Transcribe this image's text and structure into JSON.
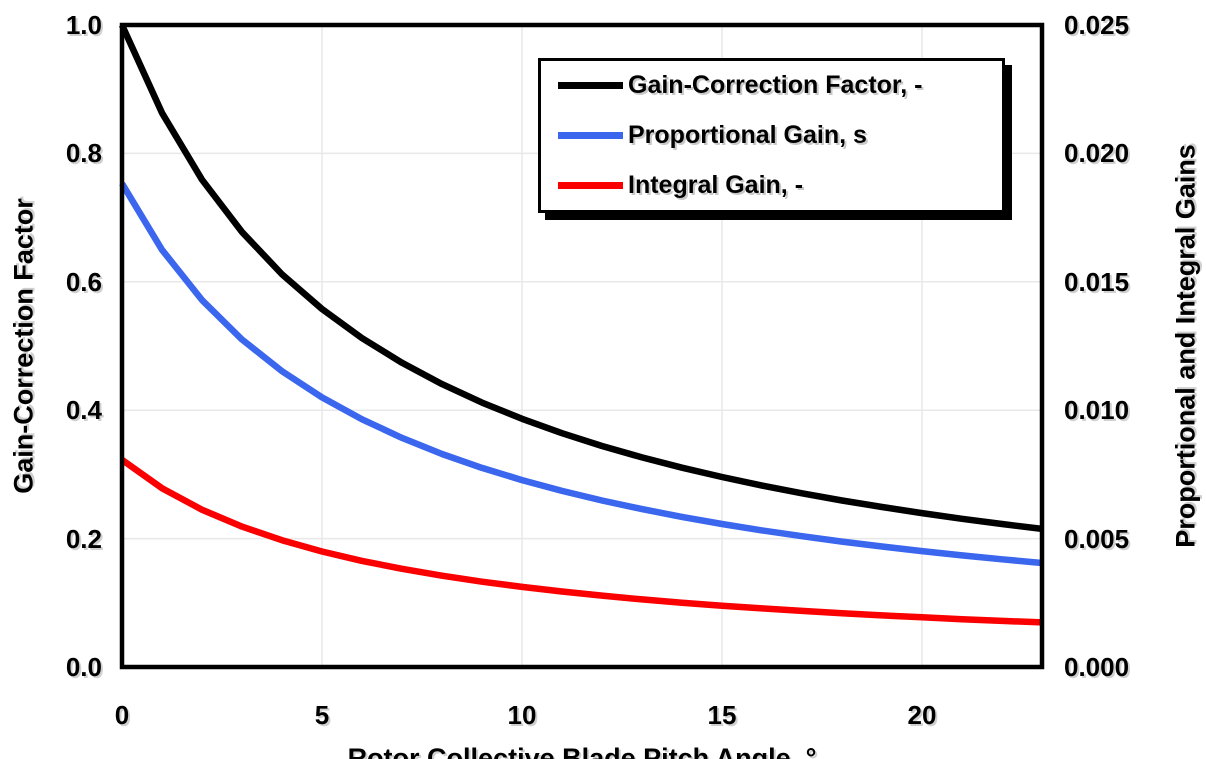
{
  "chart_data": {
    "type": "line",
    "title": "",
    "xlabel": "Rotor Collective Blade Pitch Angle, °",
    "ylabel_left": "Gain-Correction Factor",
    "ylabel_right": "Proportional and Integral Gains",
    "xlim": [
      0,
      23
    ],
    "ylim_left": [
      0.0,
      1.0
    ],
    "ylim_right": [
      0.0,
      0.025
    ],
    "x_ticks": [
      0,
      5,
      10,
      15,
      20
    ],
    "y_ticks_left": [
      "0.0",
      "0.2",
      "0.4",
      "0.6",
      "0.8",
      "1.0"
    ],
    "y_ticks_right": [
      "0.000",
      "0.005",
      "0.010",
      "0.015",
      "0.020",
      "0.025"
    ],
    "grid": true,
    "legend_position": "top-right-inside",
    "x": [
      0,
      1,
      2,
      3,
      4,
      5,
      6,
      7,
      8,
      9,
      10,
      11,
      12,
      13,
      14,
      15,
      16,
      17,
      18,
      19,
      20,
      21,
      22,
      23
    ],
    "series": [
      {
        "name": "Gain-Correction Factor, -",
        "axis": "left",
        "color": "#000000",
        "values": [
          1.0,
          0.8631,
          0.7591,
          0.6775,
          0.6117,
          0.5576,
          0.5123,
          0.4738,
          0.4407,
          0.4119,
          0.3866,
          0.3642,
          0.3443,
          0.3265,
          0.3104,
          0.2959,
          0.2826,
          0.2705,
          0.2594,
          0.2492,
          0.2397,
          0.2309,
          0.2228,
          0.2151
        ]
      },
      {
        "name": "Proportional Gain, s",
        "axis": "right",
        "color": "#3b66ee",
        "values": [
          0.018827,
          0.016248,
          0.014291,
          0.012755,
          0.011517,
          0.010498,
          0.009645,
          0.00892,
          0.008296,
          0.007754,
          0.007278,
          0.006857,
          0.006483,
          0.006147,
          0.005844,
          0.00557,
          0.005321,
          0.005093,
          0.004884,
          0.004691,
          0.004513,
          0.004347,
          0.004194,
          0.00405
        ]
      },
      {
        "name": "Integral Gain, -",
        "axis": "right",
        "color": "#fb0000",
        "values": [
          0.008069,
          0.006964,
          0.006125,
          0.005467,
          0.004936,
          0.004499,
          0.004133,
          0.003823,
          0.003556,
          0.003323,
          0.003119,
          0.002939,
          0.002779,
          0.002634,
          0.002505,
          0.002387,
          0.00228,
          0.002183,
          0.002093,
          0.002011,
          0.001934,
          0.001863,
          0.001797,
          0.001736
        ]
      }
    ]
  },
  "colors": {
    "background": "#ffffff",
    "frame": "#000000",
    "grid": "#e8e8e8",
    "legend_border": "#000000",
    "legend_shadow": "#000000"
  }
}
